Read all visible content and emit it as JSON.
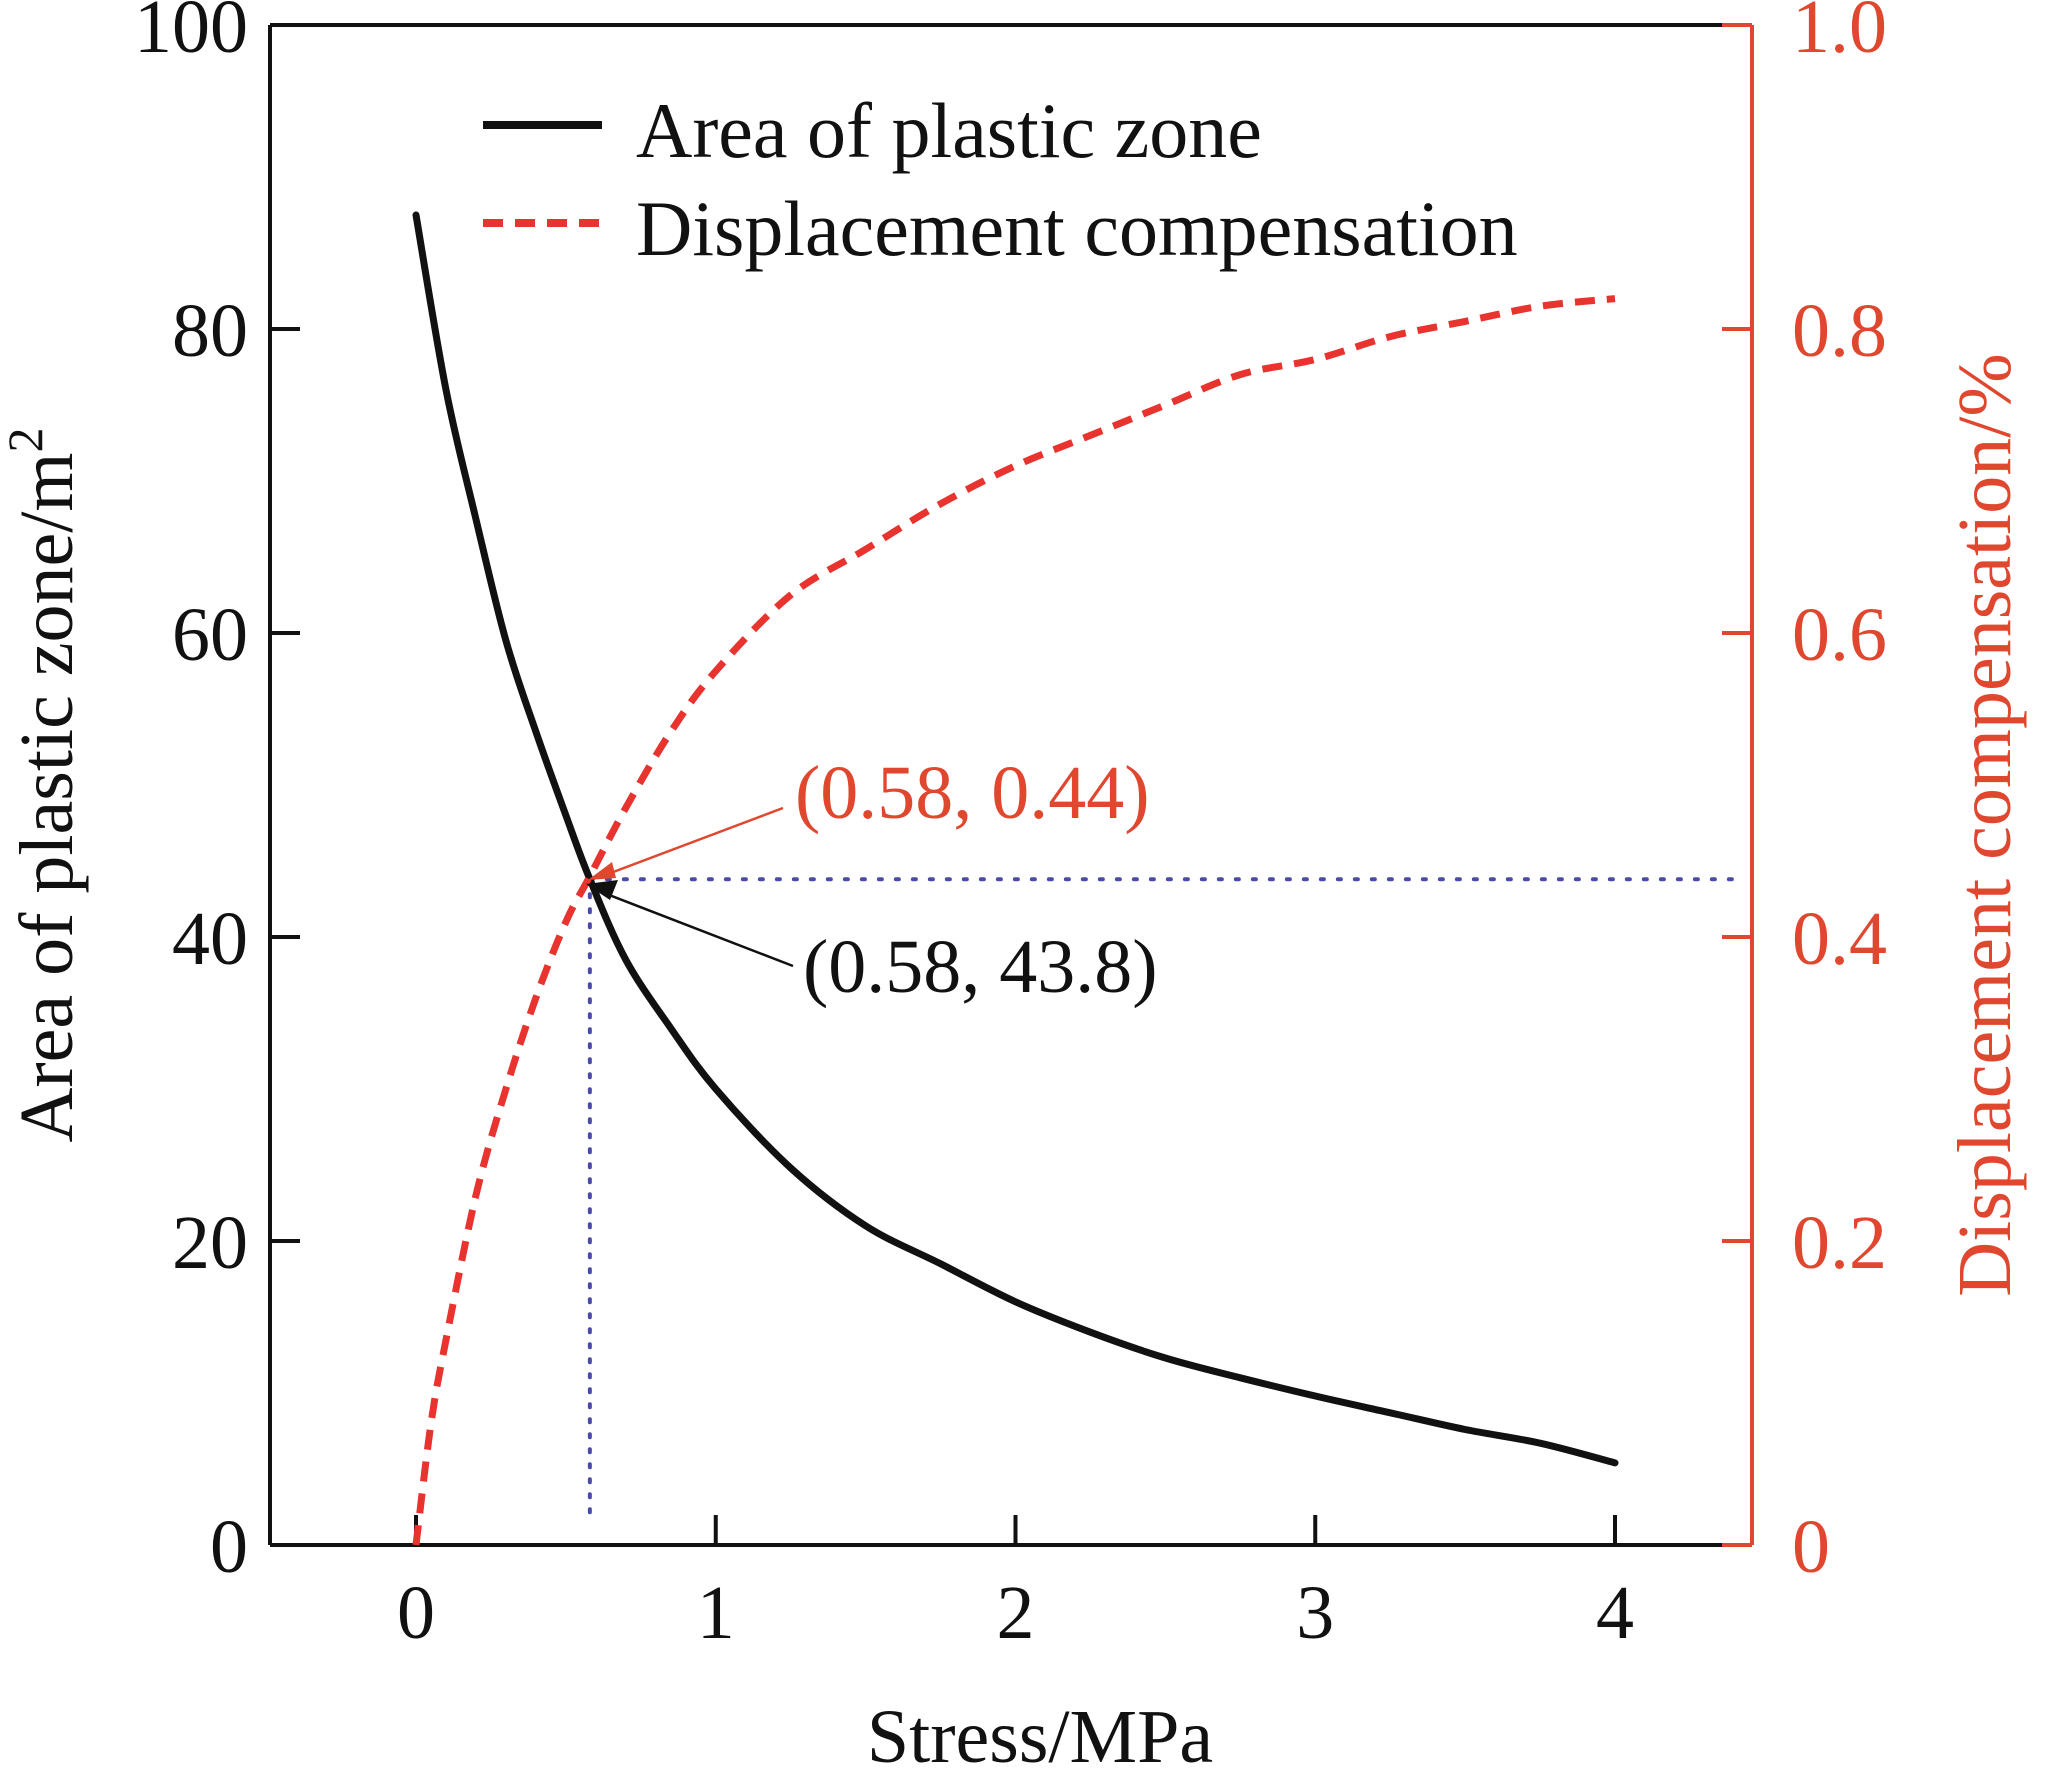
{
  "chart_data": {
    "type": "line",
    "xlabel": "Stress/MPa",
    "ylabel_left": "Area of plastic zone/m",
    "ylabel_left_sup": "2",
    "ylabel_right": "Displacement compensation/%",
    "xlim": [
      -0.5,
      4.5
    ],
    "ylim_left": [
      0,
      100
    ],
    "ylim_right": [
      0,
      1.0
    ],
    "x_ticks": [
      "0",
      "1",
      "2",
      "3",
      "4"
    ],
    "y_left_ticks": [
      "0",
      "20",
      "40",
      "60",
      "80",
      "100"
    ],
    "y_right_ticks": [
      "0",
      "0.2",
      "0.4",
      "0.6",
      "0.8",
      "1.0"
    ],
    "legend": {
      "placement": "top",
      "entries": [
        "Area of plastic zone",
        "Displacement compensation"
      ]
    },
    "grid": false,
    "series": [
      {
        "name": "Area of plastic zone",
        "axis": "left",
        "style": "solid",
        "color": "#111111",
        "x": [
          0,
          0.1,
          0.2,
          0.3,
          0.4,
          0.5,
          0.58,
          0.7,
          0.85,
          1.0,
          1.25,
          1.5,
          1.75,
          2.0,
          2.25,
          2.5,
          2.75,
          3.0,
          3.25,
          3.5,
          3.75,
          4.0
        ],
        "y": [
          87.5,
          76.0,
          67.5,
          59.5,
          53.5,
          48.0,
          43.8,
          38.5,
          34.0,
          30.0,
          24.8,
          21.0,
          18.5,
          16.0,
          14.0,
          12.3,
          11.0,
          9.8,
          8.7,
          7.6,
          6.7,
          5.4
        ]
      },
      {
        "name": "Displacement compensation",
        "axis": "right",
        "style": "dashed",
        "color": "#e8332e",
        "x": [
          0,
          0.05,
          0.1,
          0.2,
          0.3,
          0.4,
          0.5,
          0.58,
          0.7,
          0.85,
          1.0,
          1.25,
          1.5,
          1.75,
          2.0,
          2.25,
          2.5,
          2.75,
          3.0,
          3.25,
          3.5,
          3.75,
          4.0
        ],
        "y": [
          0,
          0.08,
          0.135,
          0.23,
          0.3,
          0.36,
          0.41,
          0.44,
          0.485,
          0.535,
          0.575,
          0.625,
          0.655,
          0.685,
          0.71,
          0.73,
          0.75,
          0.77,
          0.78,
          0.795,
          0.805,
          0.815,
          0.82
        ]
      }
    ],
    "reference_point": {
      "x": 0.58,
      "y_left": 43.8,
      "y_right": 0.44
    },
    "annotations": [
      {
        "text": "(0.58, 0.44)",
        "color": "#e0472f"
      },
      {
        "text": "(0.58, 43.8)",
        "color": "#111111"
      }
    ],
    "colors": {
      "right_axis": "#e0472f",
      "reference_lines": "#4a4aa8"
    }
  }
}
